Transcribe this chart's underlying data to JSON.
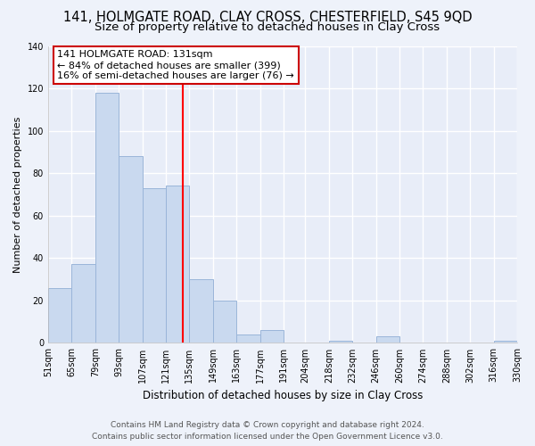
{
  "title": "141, HOLMGATE ROAD, CLAY CROSS, CHESTERFIELD, S45 9QD",
  "subtitle": "Size of property relative to detached houses in Clay Cross",
  "xlabel": "Distribution of detached houses by size in Clay Cross",
  "ylabel": "Number of detached properties",
  "bar_edges": [
    51,
    65,
    79,
    93,
    107,
    121,
    135,
    149,
    163,
    177,
    191,
    204,
    218,
    232,
    246,
    260,
    274,
    288,
    302,
    316,
    330
  ],
  "bar_heights": [
    26,
    37,
    118,
    88,
    73,
    74,
    30,
    20,
    4,
    6,
    0,
    0,
    1,
    0,
    3,
    0,
    0,
    0,
    0,
    1
  ],
  "bar_color": "#c9d9ef",
  "bar_edgecolor": "#9ab5d9",
  "reference_line_x": 131,
  "reference_line_color": "red",
  "annotation_title": "141 HOLMGATE ROAD: 131sqm",
  "annotation_line1": "← 84% of detached houses are smaller (399)",
  "annotation_line2": "16% of semi-detached houses are larger (76) →",
  "annotation_box_edgecolor": "#cc0000",
  "annotation_box_facecolor": "white",
  "ylim": [
    0,
    140
  ],
  "yticks": [
    0,
    20,
    40,
    60,
    80,
    100,
    120,
    140
  ],
  "tick_labels": [
    "51sqm",
    "65sqm",
    "79sqm",
    "93sqm",
    "107sqm",
    "121sqm",
    "135sqm",
    "149sqm",
    "163sqm",
    "177sqm",
    "191sqm",
    "204sqm",
    "218sqm",
    "232sqm",
    "246sqm",
    "260sqm",
    "274sqm",
    "288sqm",
    "302sqm",
    "316sqm",
    "330sqm"
  ],
  "footer_line1": "Contains HM Land Registry data © Crown copyright and database right 2024.",
  "footer_line2": "Contains public sector information licensed under the Open Government Licence v3.0.",
  "background_color": "#eef2fa",
  "plot_bg_color": "#e8edf8",
  "grid_color": "#ffffff",
  "title_fontsize": 10.5,
  "subtitle_fontsize": 9.5,
  "xlabel_fontsize": 8.5,
  "ylabel_fontsize": 8,
  "tick_fontsize": 7,
  "annotation_fontsize": 8,
  "footer_fontsize": 6.5
}
